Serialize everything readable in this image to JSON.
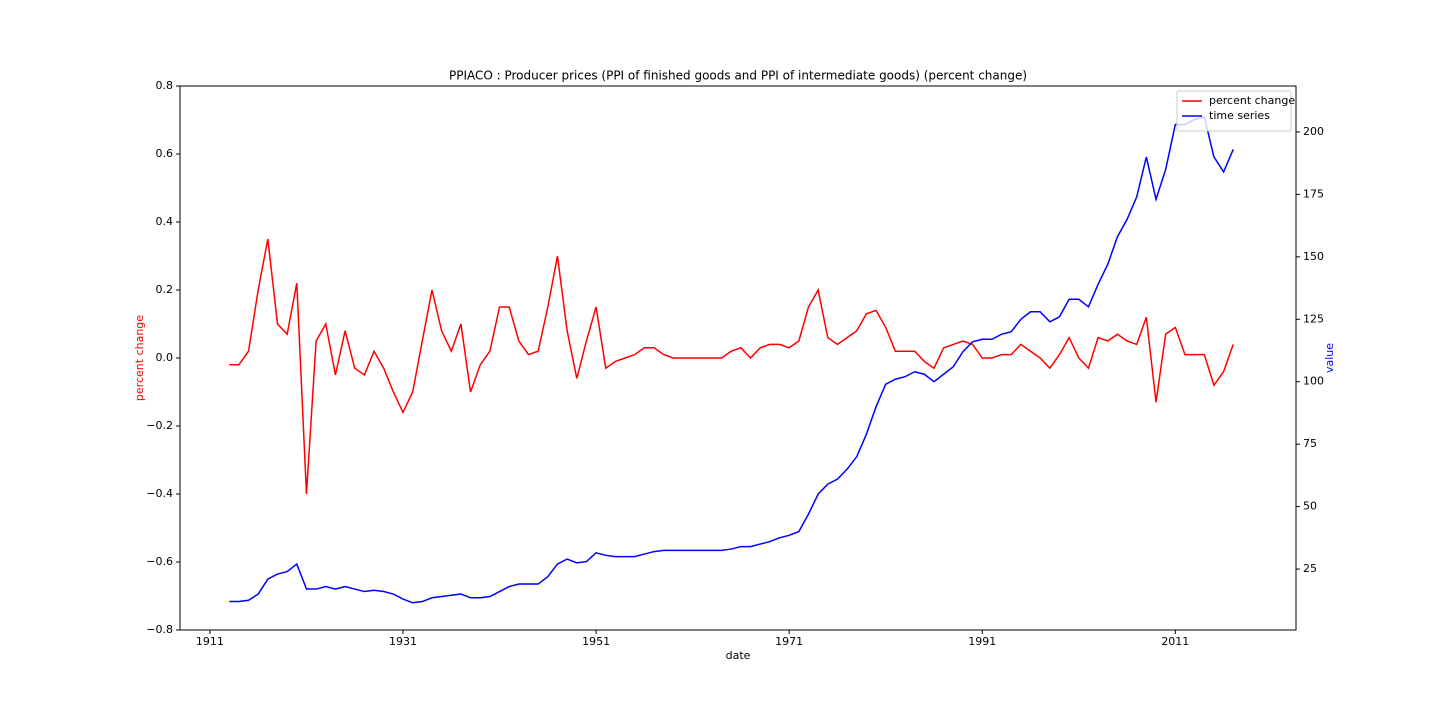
{
  "chart_data": {
    "type": "line",
    "title": "PPIACO :  Producer prices (PPI of finished goods and PPI of intermediate goods) (percent change)",
    "xlabel": "date",
    "ylabel": "percent change",
    "y2label": "value",
    "ylabel_color": "#ff0000",
    "y2label_color": "#0000ff",
    "legend": "upper right",
    "xlim": [
      1907.9,
      2023.5
    ],
    "xticks": [
      1911,
      1931,
      1951,
      1971,
      1991,
      2011
    ],
    "ylim": [
      -0.8,
      0.8
    ],
    "yticks": [
      {
        "value": -0.8,
        "label": "−0.8"
      },
      {
        "value": -0.6,
        "label": "−0.6"
      },
      {
        "value": -0.4,
        "label": "−0.4"
      },
      {
        "value": -0.2,
        "label": "−0.2"
      },
      {
        "value": 0,
        "label": "0.0"
      },
      0.2,
      0.4,
      0.6,
      0.8
    ],
    "y2lim": [
      0.6,
      218.4
    ],
    "y2ticks": [
      25,
      50,
      75,
      100,
      125,
      150,
      175,
      200
    ],
    "x": [
      1913,
      1914,
      1915,
      1916,
      1917,
      1918,
      1919,
      1920,
      1921,
      1922,
      1923,
      1924,
      1925,
      1926,
      1927,
      1928,
      1929,
      1930,
      1931,
      1932,
      1933,
      1934,
      1935,
      1936,
      1937,
      1938,
      1939,
      1940,
      1941,
      1942,
      1943,
      1944,
      1945,
      1946,
      1947,
      1948,
      1949,
      1950,
      1951,
      1952,
      1953,
      1954,
      1955,
      1956,
      1957,
      1958,
      1959,
      1960,
      1961,
      1962,
      1963,
      1964,
      1965,
      1966,
      1967,
      1968,
      1969,
      1970,
      1971,
      1972,
      1973,
      1974,
      1975,
      1976,
      1977,
      1978,
      1979,
      1980,
      1981,
      1982,
      1983,
      1984,
      1985,
      1986,
      1987,
      1988,
      1989,
      1990,
      1991,
      1992,
      1993,
      1994,
      1995,
      1996,
      1997,
      1998,
      1999,
      2000,
      2001,
      2002,
      2003,
      2004,
      2005,
      2006,
      2007,
      2008,
      2009,
      2010,
      2011,
      2012,
      2013,
      2014,
      2015,
      2016,
      2017
    ],
    "series": [
      {
        "name": "percent change",
        "color": "#ff0000",
        "axis": "y",
        "values": [
          -0.02,
          -0.02,
          0.02,
          0.2,
          0.35,
          0.1,
          0.07,
          0.22,
          -0.4,
          0.05,
          0.1,
          -0.05,
          0.08,
          -0.03,
          -0.05,
          0.02,
          -0.03,
          -0.1,
          -0.16,
          -0.1,
          0.05,
          0.2,
          0.08,
          0.02,
          0.1,
          -0.1,
          -0.02,
          0.02,
          0.15,
          0.15,
          0.05,
          0.01,
          0.02,
          0.15,
          0.3,
          0.08,
          -0.06,
          0.05,
          0.15,
          -0.03,
          -0.01,
          0,
          0.01,
          0.03,
          0.03,
          0.01,
          0,
          0,
          0,
          0,
          0,
          0,
          0.02,
          0.03,
          0,
          0.03,
          0.04,
          0.04,
          0.03,
          0.05,
          0.15,
          0.2,
          0.06,
          0.04,
          0.06,
          0.08,
          0.13,
          0.14,
          0.09,
          0.02,
          0.02,
          0.02,
          -0.01,
          -0.03,
          0.03,
          0.04,
          0.05,
          0.04,
          0,
          0,
          0.01,
          0.01,
          0.04,
          0.02,
          0,
          -0.03,
          0.01,
          0.06,
          0,
          -0.03,
          0.06,
          0.05,
          0.07,
          0.05,
          0.04,
          0.12,
          -0.13,
          0.07,
          0.09,
          0.01,
          0.01,
          0.01,
          -0.08,
          -0.04,
          0.04
        ]
      },
      {
        "name": "time series",
        "color": "#0000ff",
        "axis": "y2",
        "values": [
          12,
          12,
          12.5,
          15,
          21,
          23,
          24,
          27,
          17,
          17,
          18,
          17,
          18,
          17,
          16,
          16.5,
          16,
          15,
          13,
          11.5,
          12,
          13.5,
          14,
          14.5,
          15,
          13.5,
          13.5,
          14,
          16,
          18,
          19,
          19,
          19,
          22,
          27,
          29,
          27.5,
          28,
          31.5,
          30.5,
          30,
          30,
          30,
          31,
          32,
          32.5,
          32.5,
          32.5,
          32.5,
          32.5,
          32.5,
          32.5,
          33,
          34,
          34,
          35,
          36,
          37.5,
          38.5,
          40,
          47,
          55,
          59,
          61,
          65,
          70,
          79,
          90,
          99,
          101,
          102,
          104,
          103,
          100,
          103,
          106,
          112,
          116,
          117,
          117,
          119,
          120,
          125,
          128,
          128,
          124,
          126,
          133,
          133,
          130,
          139,
          147,
          158,
          165,
          174,
          190,
          173,
          185,
          203,
          203,
          205,
          206,
          190,
          184,
          193
        ]
      }
    ]
  }
}
